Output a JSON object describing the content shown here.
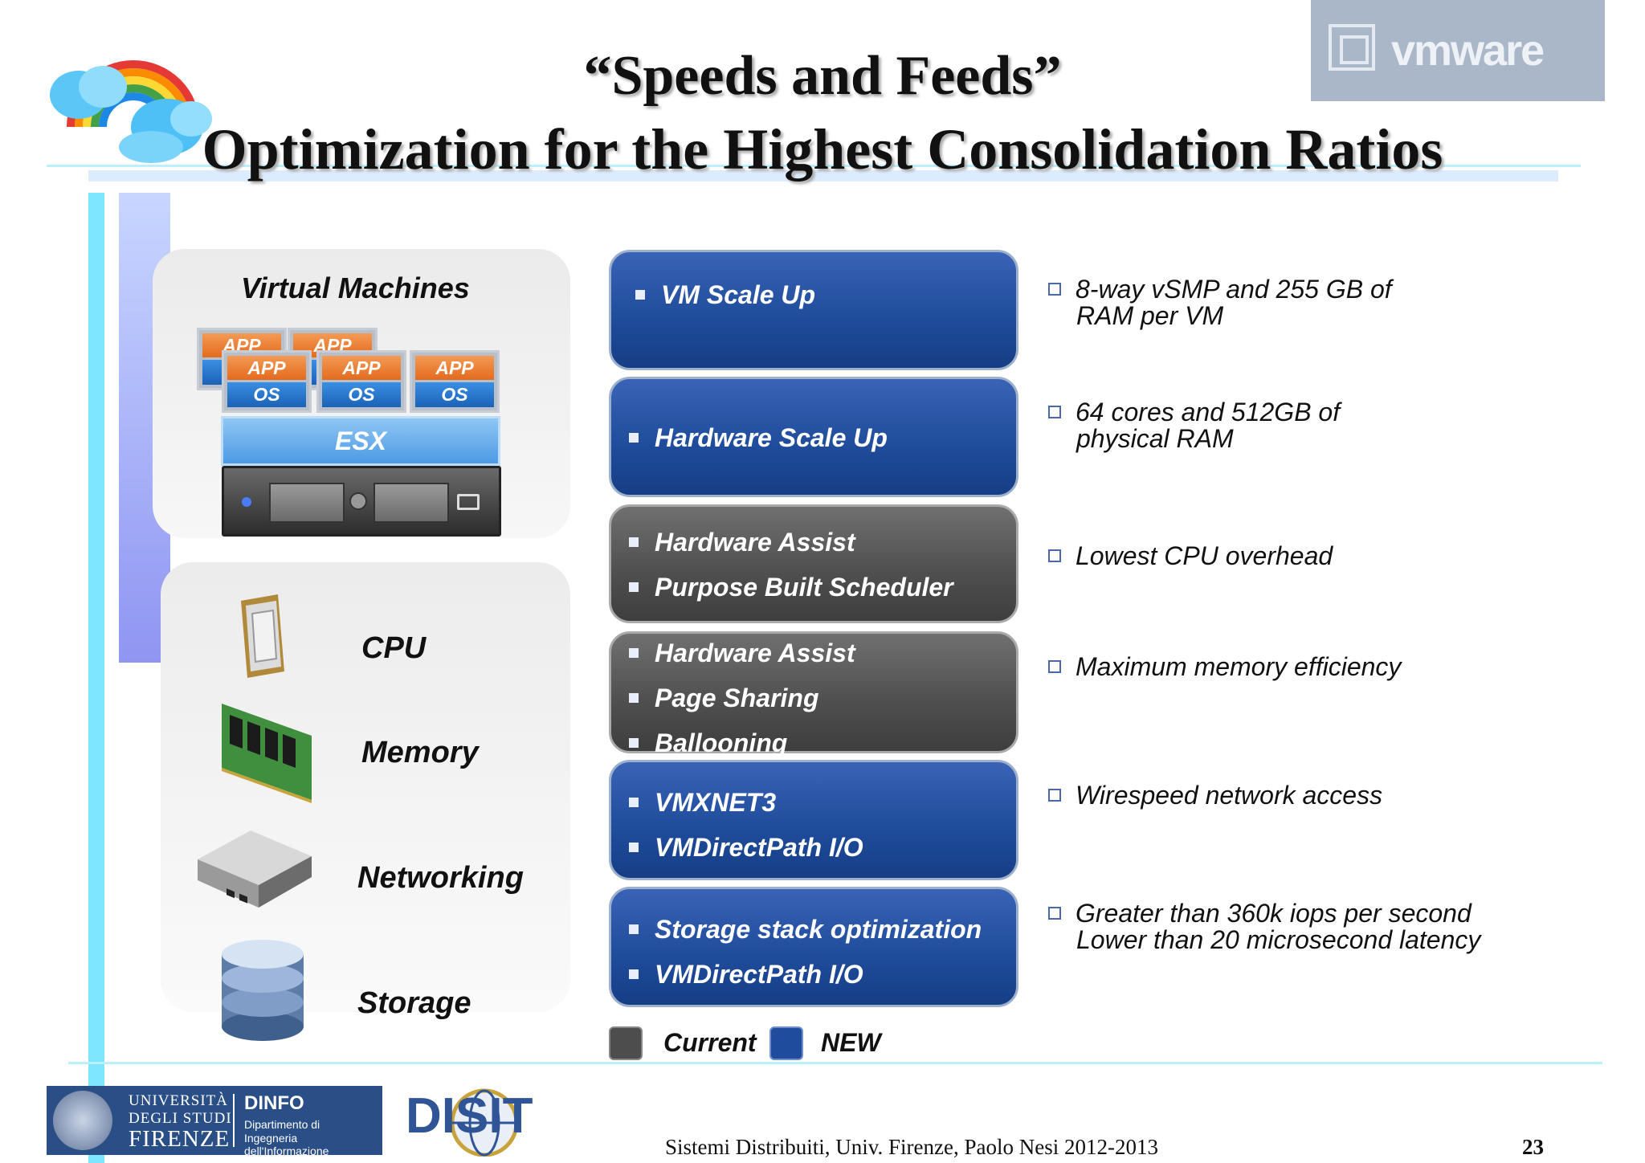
{
  "title": {
    "line1": "“Speeds and Feeds”",
    "line2": "Optimization for the Highest Consolidation Ratios"
  },
  "logo": {
    "text": "vmware"
  },
  "vm_panel": {
    "title": "Virtual Machines",
    "back_apps": [
      "APP",
      "APP"
    ],
    "stacks": [
      {
        "app": "APP",
        "os": "OS"
      },
      {
        "app": "APP",
        "os": "OS"
      },
      {
        "app": "APP",
        "os": "OS"
      }
    ],
    "hypervisor": "ESX"
  },
  "resources": {
    "cpu": "CPU",
    "memory": "Memory",
    "networking": "Networking",
    "storage": "Storage"
  },
  "boxes": [
    {
      "kind": "new",
      "items": [
        "VM Scale Up"
      ],
      "note": [
        "8-way vSMP and 255 GB of",
        "RAM per VM"
      ]
    },
    {
      "kind": "new",
      "items": [
        "Hardware Scale Up"
      ],
      "note": [
        "64 cores and  512GB  of",
        "physical RAM"
      ]
    },
    {
      "kind": "current",
      "items": [
        "Hardware Assist",
        "Purpose Built Scheduler"
      ],
      "note": [
        "Lowest CPU overhead"
      ]
    },
    {
      "kind": "current",
      "items": [
        "Hardware Assist",
        "Page Sharing",
        "Ballooning"
      ],
      "note": [
        "Maximum memory efficiency"
      ]
    },
    {
      "kind": "new",
      "items": [
        "VMXNET3",
        "VMDirectPath I/O"
      ],
      "note": [
        "Wirespeed network access"
      ]
    },
    {
      "kind": "new",
      "items": [
        "Storage stack optimization",
        "VMDirectPath I/O"
      ],
      "note": [
        "Greater than 360k iops per second",
        "Lower than 20 microsecond latency"
      ]
    }
  ],
  "legend": {
    "current": "Current",
    "new": "NEW"
  },
  "colors": {
    "new": "#1f4c9c",
    "current": "#4d4d4d",
    "accent": "#7fe6ff"
  },
  "footer": {
    "university_line1": "UNIVERSITÀ",
    "university_line2": "DEGLI STUDI",
    "university_line3": "FIRENZE",
    "dept_name": "DINFO",
    "dept_line1": "Dipartimento di",
    "dept_line2": "Ingegneria dell'Informazione",
    "disit": "DISIT",
    "course": "Sistemi Distribuiti, Univ. Firenze, Paolo Nesi 2012-2013",
    "page": "23"
  }
}
